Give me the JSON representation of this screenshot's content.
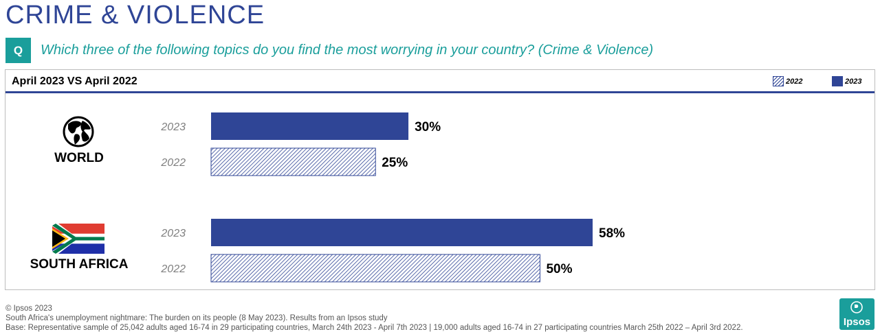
{
  "header": {
    "title": "CRIME & VIOLENCE",
    "q_label": "Q",
    "question": "Which three of the following topics do you find the most worrying in your country? (Crime & Violence)"
  },
  "panel": {
    "subtitle": "April 2023 VS April 2022",
    "legend": [
      {
        "label": "2022",
        "style": "hatched"
      },
      {
        "label": "2023",
        "style": "solid"
      }
    ]
  },
  "chart_data": {
    "type": "bar",
    "orientation": "horizontal",
    "title": "April 2023 VS April 2022",
    "categories": [
      "WORLD",
      "SOUTH AFRICA"
    ],
    "series": [
      {
        "name": "2023",
        "values": [
          30,
          58
        ],
        "labels": [
          "30%",
          "58%"
        ],
        "color": "#2f4596",
        "style": "solid"
      },
      {
        "name": "2022",
        "values": [
          25,
          50
        ],
        "labels": [
          "25%",
          "50%"
        ],
        "color": "#2f4596",
        "style": "hatched"
      }
    ],
    "unit": "%",
    "legend": "top-right",
    "grid": false
  },
  "groups": [
    {
      "name": "WORLD",
      "icon": "globe-icon"
    },
    {
      "name": "SOUTH AFRICA",
      "icon": "south-africa-flag-icon"
    }
  ],
  "footer": {
    "copyright": "© Ipsos 2023",
    "source": "South Africa's unemployment nightmare: The burden on its people (8 May  2023). Results from an Ipsos study",
    "base": "Base: Representative sample of 25,042 adults aged 16-74 in 29 participating countries, March 24th 2023 - April 7th 2023 |  19,000 adults aged 16-74 in 27 participating countries March 25th 2022 – April 3rd 2022."
  },
  "logo": {
    "text": "Ipsos"
  },
  "colors": {
    "accent": "#2f4596",
    "teal": "#1a9e9b"
  }
}
